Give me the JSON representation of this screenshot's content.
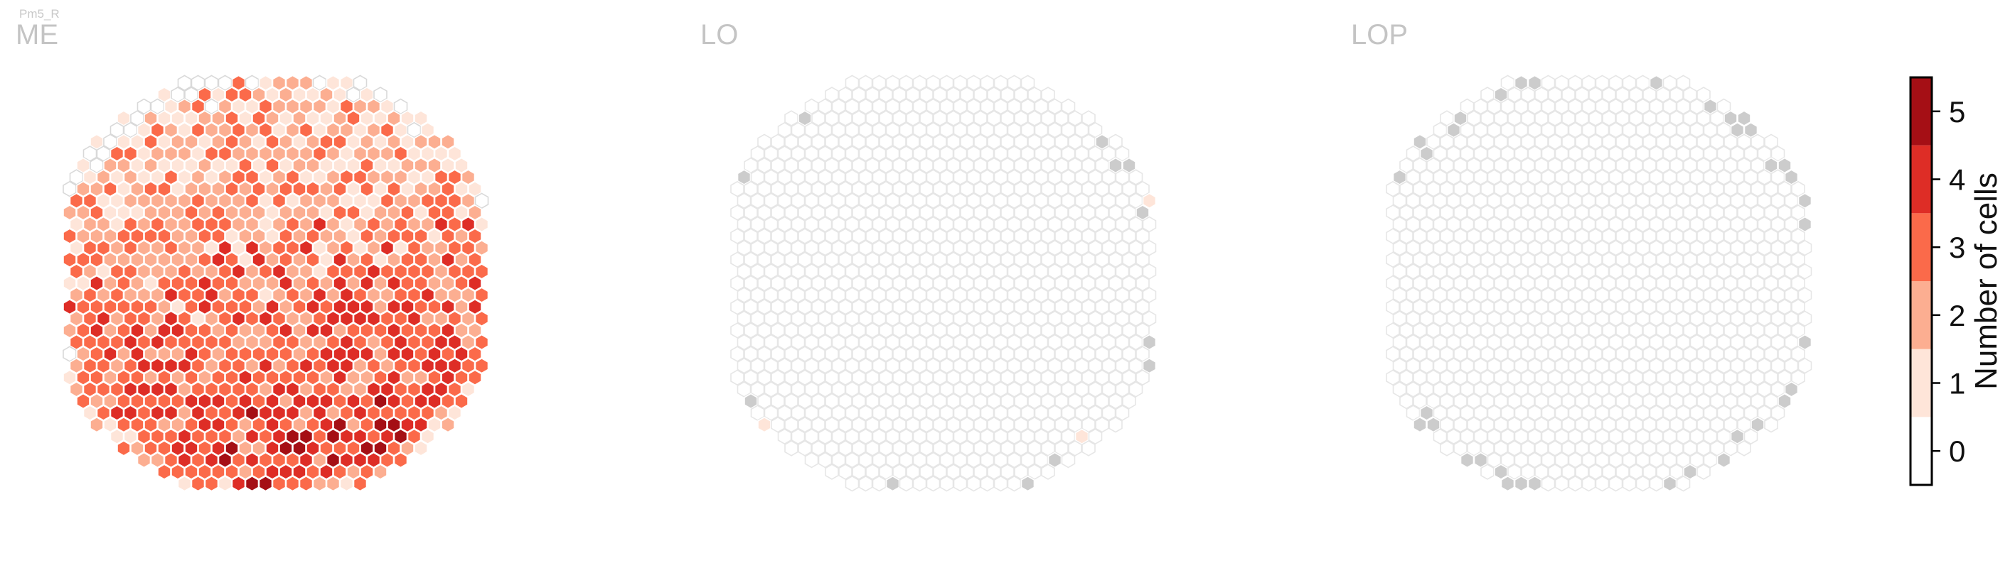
{
  "figure_label": "Pm5_R",
  "chart_data": {
    "type": "heatmap",
    "description_of_marks": "hexagonal column grid per optic neuropil",
    "panels": [
      {
        "name": "ME",
        "mode": "filled",
        "max_value": 5
      },
      {
        "name": "LO",
        "mode": "sparse",
        "max_value": 1
      },
      {
        "name": "LOP",
        "mode": "sparse",
        "max_value": 0
      }
    ],
    "colorbar": {
      "label": "Number of cells",
      "ticks": [
        0,
        1,
        2,
        3,
        4,
        5
      ],
      "range": [
        -0.5,
        5.5
      ],
      "colors": [
        "#ffffff",
        "#fee5d9",
        "#fcae91",
        "#fb6a4a",
        "#de2d26",
        "#a50f15"
      ]
    },
    "hex_grid": {
      "rows": 34,
      "cols": 31,
      "empty_fill": "#ffffff",
      "empty_stroke": "#e6e6e6",
      "edge_fill": "#cccccc"
    }
  }
}
